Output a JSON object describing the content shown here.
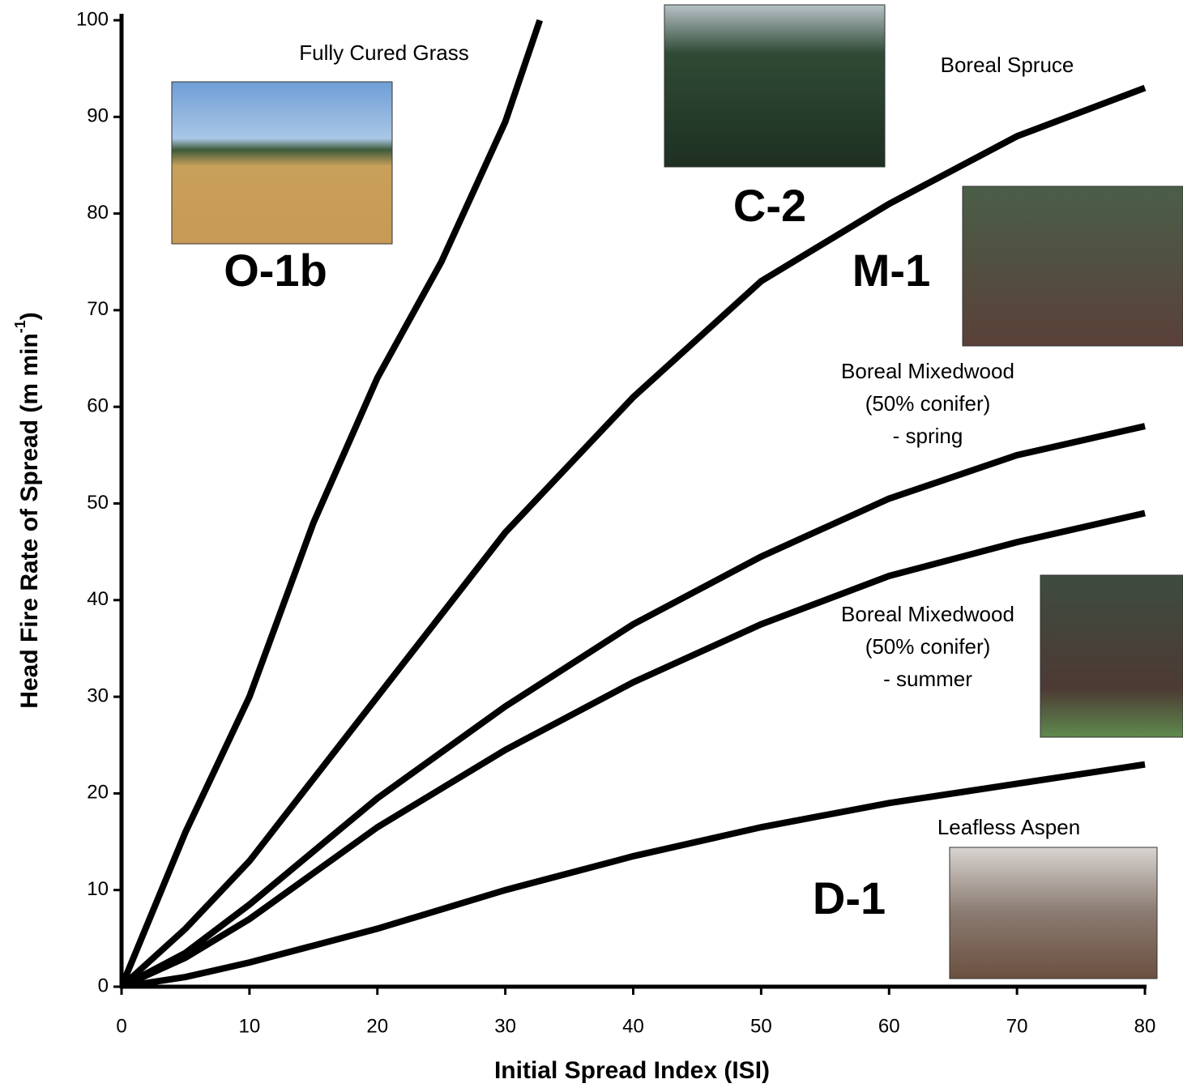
{
  "chart_data": {
    "type": "line",
    "xlabel": "Initial Spread Index (ISI)",
    "ylabel": [
      "Head Fire Rate of Spread (m min",
      "-1",
      ")"
    ],
    "xlim": [
      0,
      80
    ],
    "ylim": [
      0,
      100
    ],
    "xticks": [
      0,
      10,
      20,
      30,
      40,
      50,
      60,
      70,
      80
    ],
    "yticks": [
      0,
      10,
      20,
      30,
      40,
      50,
      60,
      70,
      80,
      90,
      100
    ],
    "color": "#000000",
    "series": [
      {
        "x": [
          0,
          5,
          10,
          15,
          20,
          25,
          30,
          32.7
        ],
        "values": [
          0,
          16,
          30,
          48,
          63,
          75,
          89.5,
          100
        ]
      },
      {
        "x": [
          0,
          5,
          10,
          20,
          30,
          40,
          50,
          60,
          70,
          80
        ],
        "values": [
          0,
          6,
          13,
          30,
          47,
          61,
          73,
          81,
          88,
          93
        ]
      },
      {
        "x": [
          0,
          5,
          10,
          20,
          30,
          40,
          50,
          60,
          70,
          80
        ],
        "values": [
          0,
          3.5,
          8.5,
          19.5,
          29,
          37.5,
          44.5,
          50.5,
          55,
          58
        ]
      },
      {
        "x": [
          0,
          5,
          10,
          20,
          30,
          40,
          50,
          60,
          70,
          80
        ],
        "values": [
          0,
          3,
          7,
          16.5,
          24.5,
          31.5,
          37.5,
          42.5,
          46,
          49
        ]
      },
      {
        "x": [
          0,
          5,
          10,
          20,
          30,
          40,
          50,
          60,
          70,
          80
        ],
        "values": [
          0,
          1,
          2.5,
          6,
          10,
          13.5,
          16.5,
          19,
          21,
          23
        ]
      }
    ],
    "annotations": [
      {
        "lines": [
          "Fully Cured Grass"
        ]
      },
      {
        "lines": [
          "O-1b"
        ]
      },
      {
        "lines": [
          "Boreal Spruce"
        ]
      },
      {
        "lines": [
          "C-2"
        ]
      },
      {
        "lines": [
          "M-1"
        ]
      },
      {
        "lines": [
          "Boreal Mixedwood",
          "(50% conifer)",
          "- spring"
        ]
      },
      {
        "lines": [
          "Boreal Mixedwood",
          "(50% conifer)",
          "- summer"
        ]
      },
      {
        "lines": [
          "Leafless Aspen"
        ]
      },
      {
        "lines": [
          "D-1"
        ]
      }
    ]
  }
}
